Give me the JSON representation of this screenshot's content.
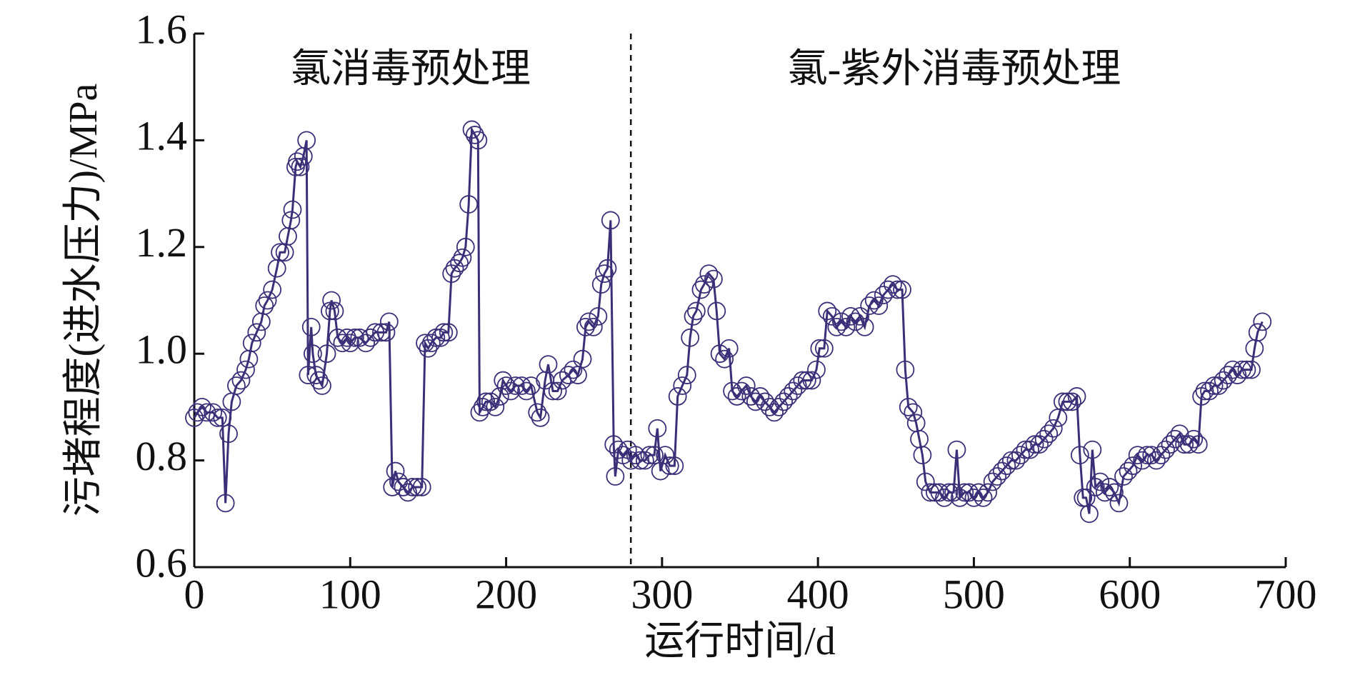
{
  "chart_data": {
    "type": "line",
    "xlabel": "运行时间/d",
    "ylabel": "污堵程度(进水压力)/MPa",
    "annotations": [
      "氯消毒预处理",
      "氯-紫外消毒预处理"
    ],
    "vlines": [
      280
    ],
    "xlim": [
      0,
      700
    ],
    "xticks": [
      0,
      100,
      200,
      300,
      400,
      500,
      600,
      700
    ],
    "ylim": [
      0.6,
      1.6
    ],
    "yticks": [
      0.6,
      0.8,
      {
        "value": 1,
        "label": "1.0"
      },
      1.2,
      1.4,
      1.6
    ],
    "x": [
      0,
      2,
      5,
      8,
      12,
      15,
      18,
      20,
      22,
      24,
      27,
      30,
      33,
      35,
      37,
      40,
      43,
      45,
      47,
      50,
      53,
      55,
      58,
      60,
      62,
      63,
      65,
      66,
      68,
      70,
      72,
      73,
      75,
      76,
      78,
      80,
      82,
      85,
      87,
      88,
      90,
      92,
      95,
      98,
      100,
      103,
      106,
      110,
      113,
      116,
      120,
      123,
      125,
      127,
      129,
      131,
      134,
      137,
      140,
      143,
      146,
      148,
      150,
      152,
      155,
      158,
      160,
      163,
      165,
      167,
      170,
      172,
      174,
      176,
      178,
      180,
      182,
      183,
      185,
      187,
      190,
      193,
      196,
      198,
      200,
      203,
      206,
      210,
      213,
      216,
      220,
      222,
      225,
      227,
      230,
      233,
      236,
      240,
      243,
      246,
      249,
      251,
      253,
      256,
      259,
      261,
      263,
      265,
      267,
      269,
      270,
      272,
      275,
      278,
      280,
      283,
      286,
      289,
      292,
      295,
      297,
      299,
      302,
      305,
      308,
      310,
      313,
      316,
      318,
      320,
      322,
      325,
      327,
      330,
      333,
      335,
      337,
      340,
      343,
      345,
      348,
      351,
      354,
      357,
      360,
      363,
      366,
      369,
      372,
      375,
      378,
      381,
      384,
      387,
      390,
      393,
      396,
      399,
      401,
      404,
      406,
      409,
      412,
      415,
      418,
      421,
      424,
      427,
      430,
      433,
      436,
      439,
      442,
      445,
      448,
      451,
      454,
      456,
      458,
      461,
      463,
      465,
      467,
      469,
      472,
      475,
      478,
      481,
      484,
      487,
      489,
      491,
      494,
      497,
      500,
      503,
      506,
      509,
      512,
      515,
      518,
      521,
      524,
      527,
      530,
      533,
      536,
      539,
      542,
      545,
      548,
      551,
      554,
      557,
      560,
      563,
      566,
      568,
      570,
      572,
      574,
      576,
      578,
      581,
      584,
      587,
      590,
      593,
      596,
      599,
      602,
      605,
      608,
      611,
      614,
      617,
      620,
      623,
      626,
      629,
      632,
      635,
      638,
      641,
      644,
      646,
      648,
      651,
      654,
      657,
      660,
      663,
      666,
      669,
      672,
      675,
      678,
      680,
      682,
      685
    ],
    "series": [
      {
        "color": "#3b2f78",
        "values": [
          0.88,
          0.89,
          0.9,
          0.89,
          0.89,
          0.88,
          0.88,
          0.72,
          0.85,
          0.91,
          0.94,
          0.95,
          0.97,
          0.99,
          1.02,
          1.04,
          1.06,
          1.09,
          1.1,
          1.12,
          1.16,
          1.19,
          1.19,
          1.22,
          1.25,
          1.27,
          1.35,
          1.36,
          1.35,
          1.37,
          1.4,
          0.96,
          1.05,
          1.0,
          0.96,
          0.95,
          0.94,
          1.0,
          1.08,
          1.1,
          1.08,
          1.03,
          1.02,
          1.03,
          1.02,
          1.03,
          1.03,
          1.02,
          1.03,
          1.04,
          1.04,
          1.04,
          1.06,
          0.75,
          0.78,
          0.76,
          0.75,
          0.74,
          0.75,
          0.75,
          0.75,
          1.02,
          1.01,
          1.02,
          1.03,
          1.03,
          1.04,
          1.04,
          1.15,
          1.16,
          1.17,
          1.18,
          1.2,
          1.28,
          1.42,
          1.41,
          1.4,
          0.89,
          0.9,
          0.91,
          0.91,
          0.9,
          0.92,
          0.95,
          0.94,
          0.93,
          0.94,
          0.94,
          0.93,
          0.94,
          0.89,
          0.88,
          0.95,
          0.98,
          0.93,
          0.93,
          0.95,
          0.96,
          0.97,
          0.96,
          0.99,
          1.05,
          1.06,
          1.05,
          1.07,
          1.13,
          1.15,
          1.16,
          1.25,
          0.83,
          0.77,
          0.82,
          0.81,
          0.82,
          0.8,
          0.81,
          0.8,
          0.8,
          0.81,
          0.81,
          0.86,
          0.78,
          0.81,
          0.79,
          0.79,
          0.92,
          0.94,
          0.96,
          1.03,
          1.07,
          1.08,
          1.12,
          1.13,
          1.15,
          1.14,
          1.08,
          1.0,
          0.99,
          1.01,
          0.93,
          0.92,
          0.93,
          0.94,
          0.92,
          0.91,
          0.92,
          0.91,
          0.9,
          0.89,
          0.9,
          0.91,
          0.92,
          0.93,
          0.94,
          0.95,
          0.95,
          0.95,
          0.97,
          1.01,
          1.01,
          1.08,
          1.07,
          1.05,
          1.06,
          1.05,
          1.07,
          1.06,
          1.07,
          1.05,
          1.09,
          1.1,
          1.09,
          1.11,
          1.12,
          1.13,
          1.12,
          1.12,
          0.97,
          0.9,
          0.89,
          0.87,
          0.84,
          0.81,
          0.76,
          0.74,
          0.74,
          0.74,
          0.73,
          0.74,
          0.74,
          0.82,
          0.73,
          0.74,
          0.74,
          0.73,
          0.74,
          0.73,
          0.74,
          0.76,
          0.77,
          0.78,
          0.79,
          0.8,
          0.8,
          0.81,
          0.82,
          0.82,
          0.83,
          0.83,
          0.84,
          0.85,
          0.86,
          0.88,
          0.91,
          0.91,
          0.91,
          0.92,
          0.81,
          0.73,
          0.73,
          0.7,
          0.82,
          0.75,
          0.76,
          0.74,
          0.75,
          0.74,
          0.72,
          0.77,
          0.78,
          0.79,
          0.81,
          0.8,
          0.81,
          0.81,
          0.8,
          0.81,
          0.82,
          0.83,
          0.84,
          0.85,
          0.83,
          0.83,
          0.84,
          0.83,
          0.92,
          0.93,
          0.93,
          0.94,
          0.94,
          0.95,
          0.96,
          0.97,
          0.96,
          0.97,
          0.97,
          0.97,
          1.01,
          1.04,
          1.06
        ]
      }
    ]
  }
}
